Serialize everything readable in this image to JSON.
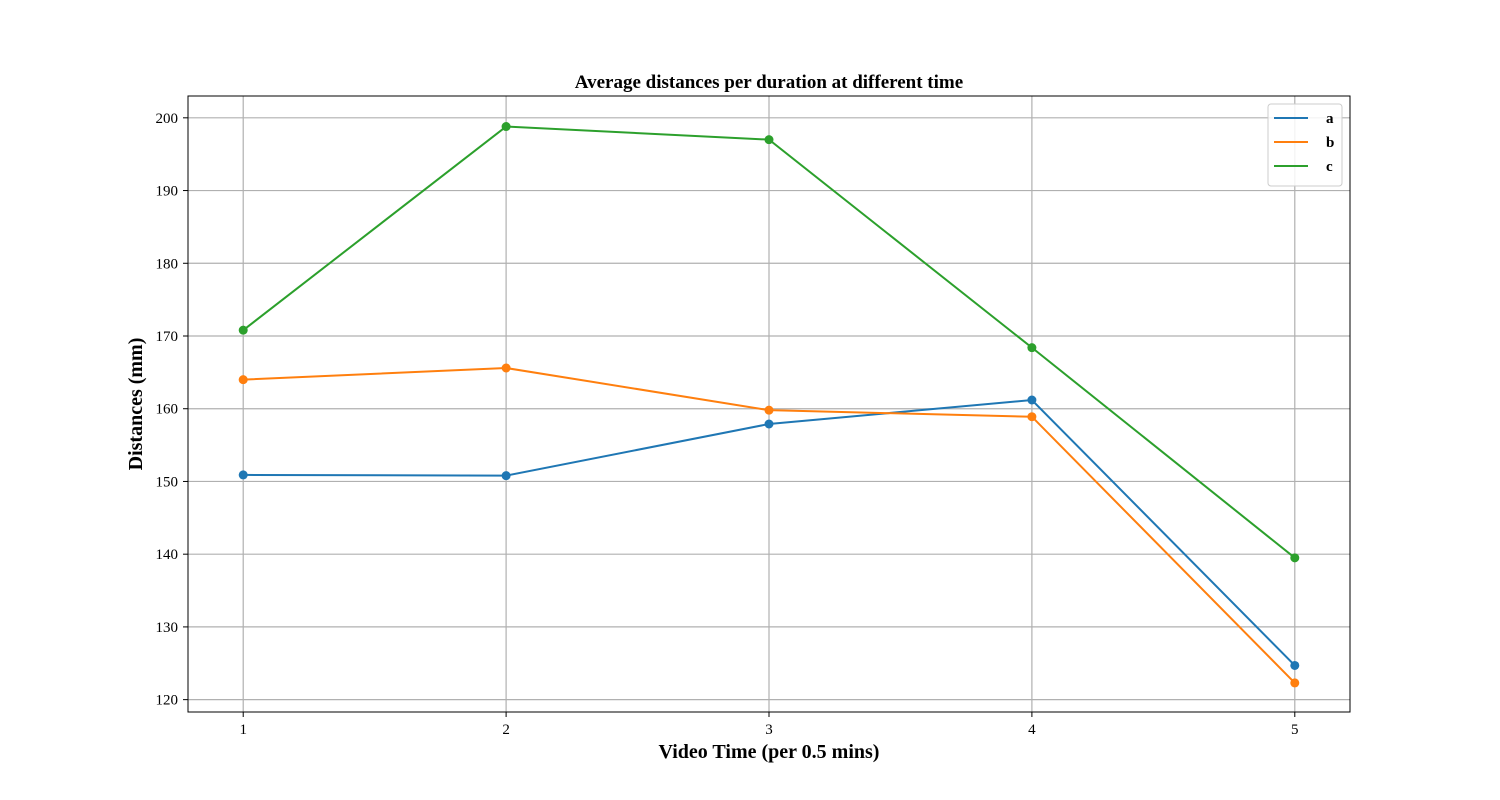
{
  "chart_data": {
    "type": "line",
    "title": "Average distances per duration at different time",
    "xlabel": "Video Time (per 0.5 mins)",
    "ylabel": "Distances (mm)",
    "x": [
      1,
      2,
      3,
      4,
      5
    ],
    "xlim": [
      0.79,
      5.21
    ],
    "ylim": [
      118.3,
      203.0
    ],
    "xticks": [
      1,
      2,
      3,
      4,
      5
    ],
    "yticks": [
      120,
      130,
      140,
      150,
      160,
      170,
      180,
      190,
      200
    ],
    "grid": true,
    "legend_position": "top-right",
    "markers": true,
    "series": [
      {
        "name": "a",
        "color": "#1f77b4",
        "values": [
          150.9,
          150.8,
          157.9,
          161.2,
          124.7
        ]
      },
      {
        "name": "b",
        "color": "#ff7f0e",
        "values": [
          164.0,
          165.6,
          159.8,
          158.9,
          122.3
        ]
      },
      {
        "name": "c",
        "color": "#2ca02c",
        "values": [
          170.8,
          198.8,
          197.0,
          168.4,
          139.5
        ]
      }
    ]
  }
}
